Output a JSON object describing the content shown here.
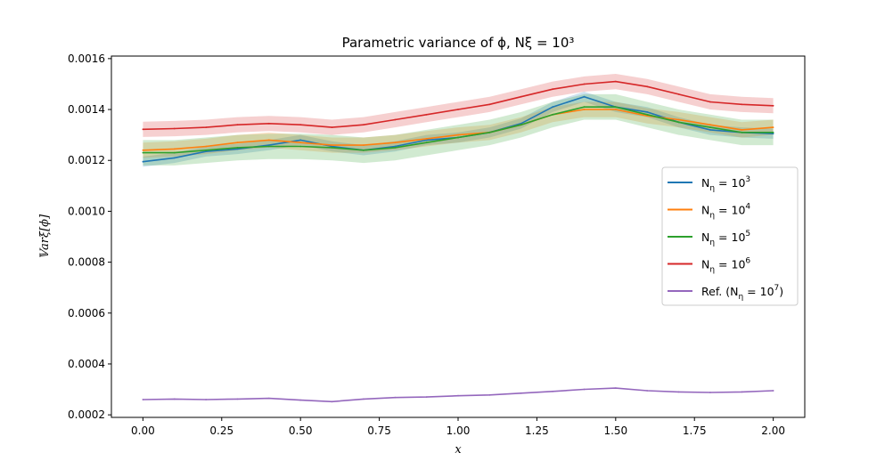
{
  "chart_data": {
    "type": "line",
    "title": "Parametric variance of ϕ, Nξ = 10³",
    "xlabel": "x",
    "ylabel": "𝕍arξ[ϕ]",
    "xlim": [
      -0.1,
      2.1
    ],
    "ylim": [
      0.00019,
      0.00161
    ],
    "x_ticks": [
      "0.00",
      "0.25",
      "0.50",
      "0.75",
      "1.00",
      "1.25",
      "1.50",
      "1.75",
      "2.00"
    ],
    "y_ticks": [
      "0.0002",
      "0.0004",
      "0.0006",
      "0.0008",
      "0.0010",
      "0.0012",
      "0.0014",
      "0.0016"
    ],
    "grid": false,
    "legend_position": "center-right",
    "x": [
      0.0,
      0.1,
      0.2,
      0.3,
      0.4,
      0.5,
      0.6,
      0.7,
      0.8,
      0.9,
      1.0,
      1.1,
      1.2,
      1.3,
      1.4,
      1.5,
      1.6,
      1.7,
      1.8,
      1.9,
      2.0
    ],
    "series": [
      {
        "name": "Nη = 10³",
        "legend_base": "N",
        "legend_sub": "η",
        "legend_eq": " = 10",
        "legend_exp": "3",
        "color": "#1f77b4",
        "band_halfwidth": 2e-05,
        "values": [
          0.001195,
          0.00121,
          0.001235,
          0.001245,
          0.00126,
          0.00128,
          0.001255,
          0.00124,
          0.001255,
          0.00128,
          0.00129,
          0.00131,
          0.001345,
          0.00141,
          0.00145,
          0.00141,
          0.00139,
          0.00135,
          0.00132,
          0.00131,
          0.001305
        ]
      },
      {
        "name": "Nη = 10⁴",
        "legend_base": "N",
        "legend_sub": "η",
        "legend_eq": " = 10",
        "legend_exp": "4",
        "color": "#ff7f0e",
        "band_halfwidth": 3e-05,
        "values": [
          0.00124,
          0.001245,
          0.001255,
          0.00127,
          0.00128,
          0.00127,
          0.00126,
          0.00126,
          0.00127,
          0.001285,
          0.0013,
          0.00131,
          0.00134,
          0.00138,
          0.0014,
          0.0014,
          0.001375,
          0.00136,
          0.00134,
          0.00132,
          0.00133
        ]
      },
      {
        "name": "Nη = 10⁵",
        "legend_base": "N",
        "legend_sub": "η",
        "legend_eq": " = 10",
        "legend_exp": "5",
        "color": "#2ca02c",
        "band_halfwidth": 5e-05,
        "values": [
          0.00123,
          0.00123,
          0.00124,
          0.00125,
          0.001255,
          0.001255,
          0.00125,
          0.00124,
          0.00125,
          0.00127,
          0.00129,
          0.00131,
          0.00134,
          0.00138,
          0.00141,
          0.00141,
          0.00138,
          0.00135,
          0.00133,
          0.00131,
          0.00131
        ]
      },
      {
        "name": "Nη = 10⁶",
        "legend_base": "N",
        "legend_sub": "η",
        "legend_eq": " = 10",
        "legend_exp": "6",
        "color": "#d62728",
        "band_halfwidth": 3e-05,
        "values": [
          0.001322,
          0.001325,
          0.00133,
          0.00134,
          0.001345,
          0.00134,
          0.00133,
          0.00134,
          0.00136,
          0.00138,
          0.0014,
          0.00142,
          0.00145,
          0.00148,
          0.0015,
          0.00151,
          0.00149,
          0.00146,
          0.00143,
          0.00142,
          0.001415
        ]
      },
      {
        "name": "Ref. (Nη = 10⁷)",
        "legend_base": "Ref. (N",
        "legend_sub": "η",
        "legend_eq": " = 10",
        "legend_exp": "7",
        "legend_tail": ")",
        "color": "#9467bd",
        "band_halfwidth": 0,
        "values": [
          0.00026,
          0.000262,
          0.00026,
          0.000262,
          0.000265,
          0.000258,
          0.000252,
          0.000262,
          0.000268,
          0.00027,
          0.000275,
          0.000278,
          0.000285,
          0.000292,
          0.0003,
          0.000305,
          0.000295,
          0.00029,
          0.000288,
          0.00029,
          0.000295
        ]
      }
    ]
  }
}
